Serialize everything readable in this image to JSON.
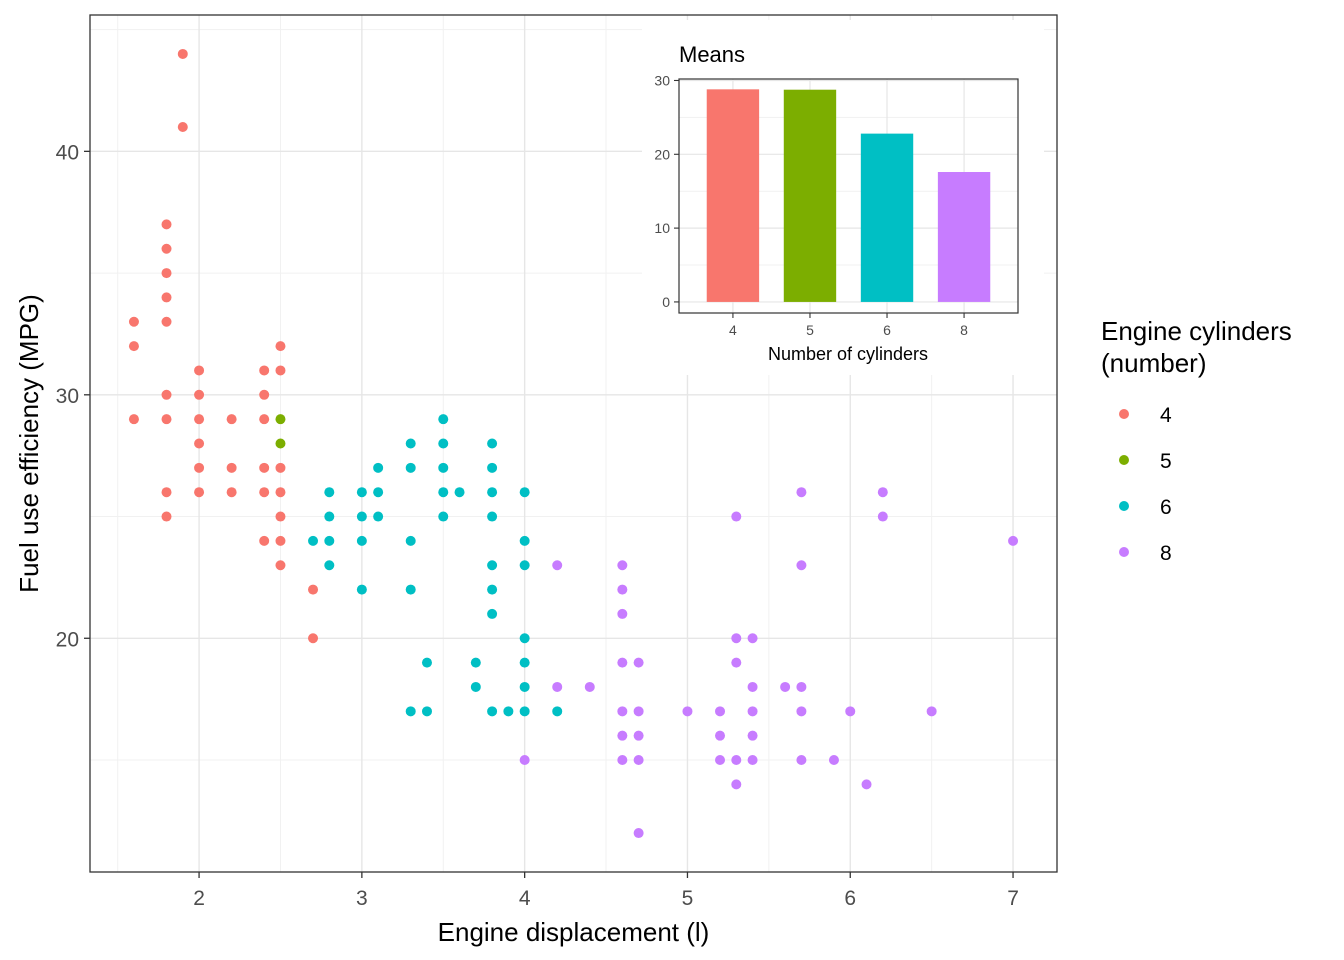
{
  "chart_data": [
    {
      "type": "scatter",
      "xlabel": "Engine displacement (l)",
      "ylabel": "Fuel use efficiency (MPG)",
      "xlim": [
        1.33,
        7.27
      ],
      "ylim": [
        10.4,
        45.6
      ],
      "x_ticks": [
        2,
        3,
        4,
        5,
        6,
        7
      ],
      "y_ticks": [
        20,
        30,
        40
      ],
      "grid": true,
      "legend": {
        "title_line1": "Engine cylinders",
        "title_line2": "(number)",
        "placement": "right",
        "entries": [
          {
            "label": "4",
            "color": "#F8766D"
          },
          {
            "label": "5",
            "color": "#7CAE00"
          },
          {
            "label": "6",
            "color": "#00BFC4"
          },
          {
            "label": "8",
            "color": "#C77CFF"
          }
        ]
      },
      "series": [
        {
          "name": "4",
          "color": "#F8766D",
          "points": [
            [
              1.6,
              33
            ],
            [
              1.6,
              32
            ],
            [
              1.6,
              29
            ],
            [
              1.8,
              37
            ],
            [
              1.8,
              36
            ],
            [
              1.8,
              35
            ],
            [
              1.8,
              34
            ],
            [
              1.8,
              33
            ],
            [
              1.8,
              30
            ],
            [
              1.8,
              29
            ],
            [
              1.8,
              26
            ],
            [
              1.8,
              25
            ],
            [
              1.9,
              44
            ],
            [
              1.9,
              41
            ],
            [
              2.0,
              31
            ],
            [
              2.0,
              30
            ],
            [
              2.0,
              29
            ],
            [
              2.0,
              28
            ],
            [
              2.0,
              27
            ],
            [
              2.0,
              26
            ],
            [
              2.2,
              29
            ],
            [
              2.2,
              27
            ],
            [
              2.2,
              26
            ],
            [
              2.4,
              31
            ],
            [
              2.4,
              30
            ],
            [
              2.4,
              29
            ],
            [
              2.4,
              27
            ],
            [
              2.4,
              26
            ],
            [
              2.4,
              24
            ],
            [
              2.5,
              32
            ],
            [
              2.5,
              31
            ],
            [
              2.5,
              27
            ],
            [
              2.5,
              26
            ],
            [
              2.5,
              25
            ],
            [
              2.5,
              24
            ],
            [
              2.5,
              23
            ],
            [
              2.7,
              22
            ],
            [
              2.7,
              20
            ]
          ]
        },
        {
          "name": "5",
          "color": "#7CAE00",
          "points": [
            [
              2.5,
              29
            ],
            [
              2.5,
              28
            ]
          ]
        },
        {
          "name": "6",
          "color": "#00BFC4",
          "points": [
            [
              2.7,
              24
            ],
            [
              2.8,
              26
            ],
            [
              2.8,
              25
            ],
            [
              2.8,
              24
            ],
            [
              2.8,
              23
            ],
            [
              3.0,
              26
            ],
            [
              3.0,
              25
            ],
            [
              3.0,
              24
            ],
            [
              3.0,
              22
            ],
            [
              3.1,
              27
            ],
            [
              3.1,
              26
            ],
            [
              3.1,
              25
            ],
            [
              3.3,
              28
            ],
            [
              3.3,
              27
            ],
            [
              3.3,
              24
            ],
            [
              3.3,
              22
            ],
            [
              3.3,
              17
            ],
            [
              3.4,
              19
            ],
            [
              3.4,
              17
            ],
            [
              3.5,
              29
            ],
            [
              3.5,
              28
            ],
            [
              3.5,
              27
            ],
            [
              3.5,
              26
            ],
            [
              3.5,
              25
            ],
            [
              3.6,
              26
            ],
            [
              3.7,
              19
            ],
            [
              3.7,
              18
            ],
            [
              3.8,
              28
            ],
            [
              3.8,
              27
            ],
            [
              3.8,
              26
            ],
            [
              3.8,
              25
            ],
            [
              3.8,
              23
            ],
            [
              3.8,
              22
            ],
            [
              3.8,
              21
            ],
            [
              3.8,
              17
            ],
            [
              3.9,
              17
            ],
            [
              4.0,
              26
            ],
            [
              4.0,
              24
            ],
            [
              4.0,
              23
            ],
            [
              4.0,
              20
            ],
            [
              4.0,
              19
            ],
            [
              4.0,
              18
            ],
            [
              4.0,
              17
            ],
            [
              4.2,
              17
            ]
          ]
        },
        {
          "name": "8",
          "color": "#C77CFF",
          "points": [
            [
              4.0,
              15
            ],
            [
              4.2,
              23
            ],
            [
              4.2,
              18
            ],
            [
              4.4,
              18
            ],
            [
              4.6,
              23
            ],
            [
              4.6,
              22
            ],
            [
              4.6,
              21
            ],
            [
              4.6,
              19
            ],
            [
              4.6,
              17
            ],
            [
              4.6,
              16
            ],
            [
              4.6,
              15
            ],
            [
              4.7,
              19
            ],
            [
              4.7,
              17
            ],
            [
              4.7,
              16
            ],
            [
              4.7,
              15
            ],
            [
              4.7,
              12
            ],
            [
              5.0,
              17
            ],
            [
              5.2,
              17
            ],
            [
              5.2,
              16
            ],
            [
              5.2,
              15
            ],
            [
              5.3,
              25
            ],
            [
              5.3,
              20
            ],
            [
              5.3,
              19
            ],
            [
              5.3,
              15
            ],
            [
              5.3,
              14
            ],
            [
              5.4,
              20
            ],
            [
              5.4,
              18
            ],
            [
              5.4,
              17
            ],
            [
              5.4,
              16
            ],
            [
              5.4,
              15
            ],
            [
              5.6,
              18
            ],
            [
              5.7,
              26
            ],
            [
              5.7,
              23
            ],
            [
              5.7,
              18
            ],
            [
              5.7,
              17
            ],
            [
              5.7,
              15
            ],
            [
              5.9,
              15
            ],
            [
              6.0,
              17
            ],
            [
              6.1,
              14
            ],
            [
              6.2,
              26
            ],
            [
              6.2,
              25
            ],
            [
              6.5,
              17
            ],
            [
              7.0,
              24
            ]
          ]
        }
      ]
    },
    {
      "type": "bar",
      "title": "Means",
      "xlabel": "Number of cylinders",
      "ylabel": "",
      "categories": [
        "4",
        "5",
        "6",
        "8"
      ],
      "values": [
        28.8,
        28.75,
        22.8,
        17.6
      ],
      "colors": [
        "#F8766D",
        "#7CAE00",
        "#00BFC4",
        "#C77CFF"
      ],
      "ylim": [
        -1.5,
        30.2
      ],
      "y_ticks": [
        0,
        10,
        20,
        30
      ]
    }
  ]
}
